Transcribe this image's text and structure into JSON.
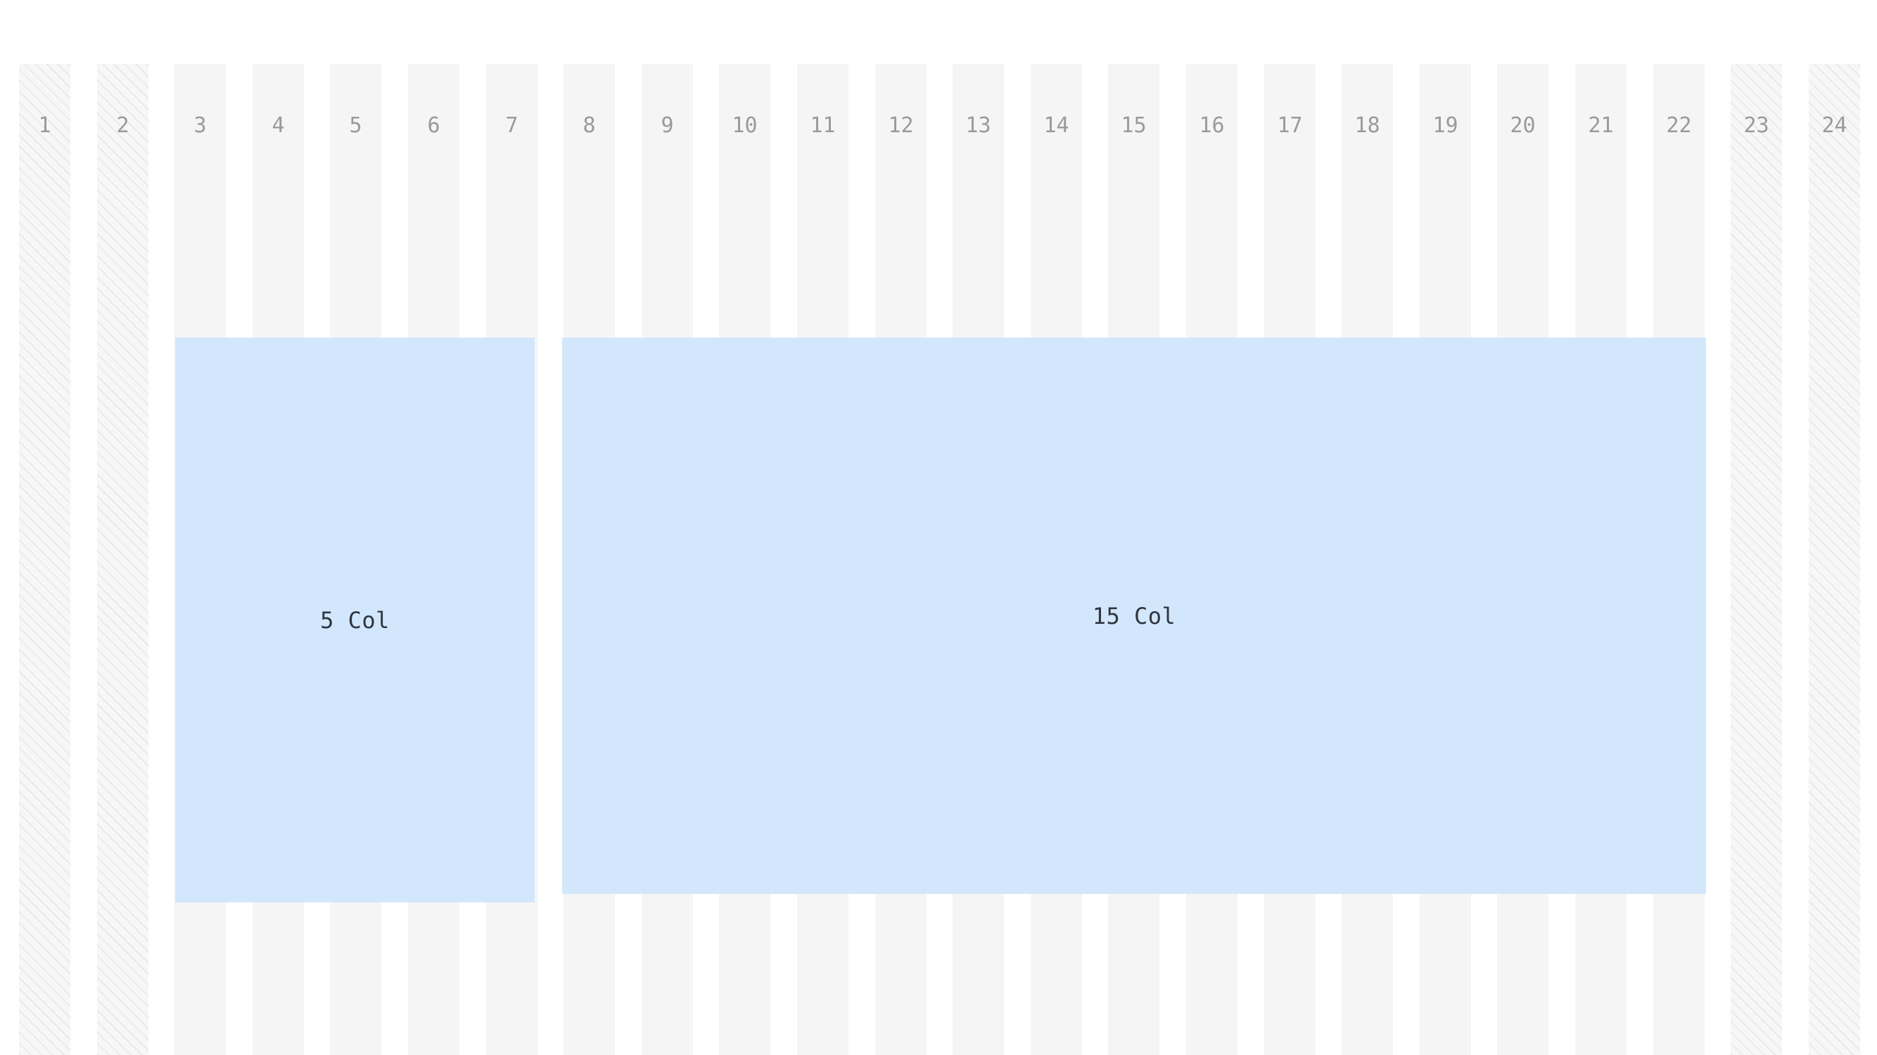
{
  "grid": {
    "columns": [
      {
        "label": "1",
        "hatched": true
      },
      {
        "label": "2",
        "hatched": true
      },
      {
        "label": "3",
        "hatched": false
      },
      {
        "label": "4",
        "hatched": false
      },
      {
        "label": "5",
        "hatched": false
      },
      {
        "label": "6",
        "hatched": false
      },
      {
        "label": "7",
        "hatched": false
      },
      {
        "label": "8",
        "hatched": false
      },
      {
        "label": "9",
        "hatched": false
      },
      {
        "label": "10",
        "hatched": false
      },
      {
        "label": "11",
        "hatched": false
      },
      {
        "label": "12",
        "hatched": false
      },
      {
        "label": "13",
        "hatched": false
      },
      {
        "label": "14",
        "hatched": false
      },
      {
        "label": "15",
        "hatched": false
      },
      {
        "label": "16",
        "hatched": false
      },
      {
        "label": "17",
        "hatched": false
      },
      {
        "label": "18",
        "hatched": false
      },
      {
        "label": "19",
        "hatched": false
      },
      {
        "label": "20",
        "hatched": false
      },
      {
        "label": "21",
        "hatched": false
      },
      {
        "label": "22",
        "hatched": false
      },
      {
        "label": "23",
        "hatched": true
      },
      {
        "label": "24",
        "hatched": true
      }
    ]
  },
  "blocks": {
    "block_a": {
      "label": "5 Col",
      "span": 5
    },
    "block_b": {
      "label": "15 Col",
      "span": 15
    }
  },
  "colors": {
    "column_fill": "#f5f5f5",
    "block_fill": "#d3e7fc",
    "number_text": "#9a9a9a",
    "block_text": "#2f3640"
  }
}
